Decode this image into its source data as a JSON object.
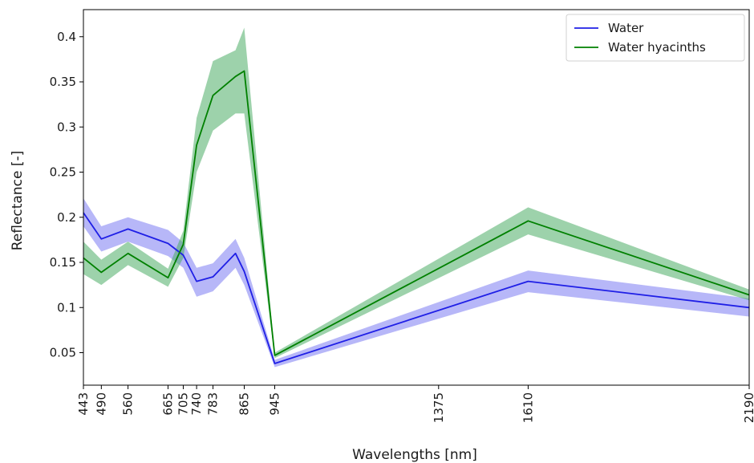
{
  "chart_data": {
    "type": "line",
    "xlabel": "Wavelengths [nm]",
    "ylabel": "Reflectance [-]",
    "x": [
      443,
      490,
      560,
      665,
      705,
      740,
      783,
      842,
      865,
      945,
      1610,
      2190
    ],
    "xticks": [
      443,
      490,
      560,
      665,
      705,
      740,
      783,
      865,
      945,
      1375,
      1610,
      2190
    ],
    "xlim": [
      443,
      2190
    ],
    "ylim": [
      0.014,
      0.43
    ],
    "yticks": [
      0.05,
      0.1,
      0.15,
      0.2,
      0.25,
      0.3,
      0.35,
      0.4
    ],
    "ytick_labels": [
      "0.05",
      "0.1",
      "0.15",
      "0.2",
      "0.25",
      "0.3",
      "0.35",
      "0.4"
    ],
    "grid": false,
    "legend_position": "top-right",
    "series": [
      {
        "name": "Water",
        "color": "#1f1fe6",
        "band_color": "#7b7bf2",
        "values": [
          0.205,
          0.176,
          0.187,
          0.171,
          0.158,
          0.129,
          0.134,
          0.16,
          0.14,
          0.038,
          0.129,
          0.1
        ],
        "lower": [
          0.19,
          0.162,
          0.173,
          0.157,
          0.144,
          0.112,
          0.118,
          0.144,
          0.125,
          0.034,
          0.117,
          0.09
        ],
        "upper": [
          0.221,
          0.19,
          0.2,
          0.186,
          0.172,
          0.144,
          0.149,
          0.176,
          0.155,
          0.042,
          0.141,
          0.11
        ]
      },
      {
        "name": "Water hyacinths",
        "color": "#008000",
        "band_color": "#4dad66",
        "values": [
          0.155,
          0.139,
          0.16,
          0.133,
          0.17,
          0.28,
          0.335,
          0.356,
          0.362,
          0.047,
          0.196,
          0.114
        ],
        "lower": [
          0.137,
          0.125,
          0.147,
          0.123,
          0.155,
          0.25,
          0.296,
          0.315,
          0.315,
          0.044,
          0.181,
          0.108
        ],
        "upper": [
          0.173,
          0.153,
          0.173,
          0.143,
          0.185,
          0.31,
          0.373,
          0.385,
          0.41,
          0.05,
          0.211,
          0.12
        ]
      }
    ]
  }
}
